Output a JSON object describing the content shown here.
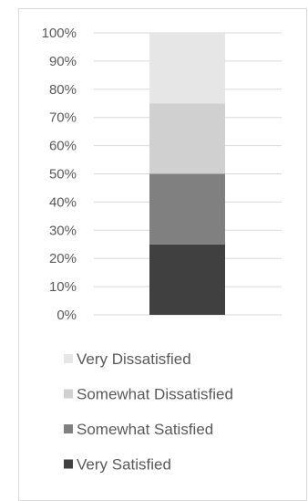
{
  "chart_data": {
    "type": "bar",
    "stacked": true,
    "orientation": "vertical",
    "categories": [
      ""
    ],
    "ylim": [
      0,
      100
    ],
    "yticks": [
      0,
      10,
      20,
      30,
      40,
      50,
      60,
      70,
      80,
      90,
      100
    ],
    "ytick_labels": [
      "0%",
      "10%",
      "20%",
      "30%",
      "40%",
      "50%",
      "60%",
      "70%",
      "80%",
      "90%",
      "100%"
    ],
    "grid": true,
    "legend_position": "bottom",
    "series": [
      {
        "name": "Very Satisfied",
        "values": [
          25
        ],
        "color": "#404040"
      },
      {
        "name": "Somewhat Satisfied",
        "values": [
          25
        ],
        "color": "#808080"
      },
      {
        "name": "Somewhat Dissatisfied",
        "values": [
          25
        ],
        "color": "#d0d0d0"
      },
      {
        "name": "Very Dissatisfied",
        "values": [
          25
        ],
        "color": "#e6e6e6"
      }
    ],
    "legend_order": [
      "Very Dissatisfied",
      "Somewhat Dissatisfied",
      "Somewhat Satisfied",
      "Very Satisfied"
    ]
  }
}
